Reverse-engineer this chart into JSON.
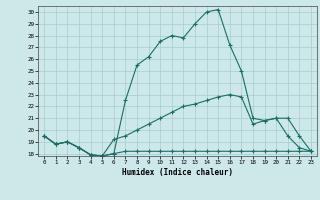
{
  "xlabel": "Humidex (Indice chaleur)",
  "ylabel": "",
  "xlim": [
    -0.5,
    23.5
  ],
  "ylim": [
    17.8,
    30.5
  ],
  "yticks": [
    18,
    19,
    20,
    21,
    22,
    23,
    24,
    25,
    26,
    27,
    28,
    29,
    30
  ],
  "xticks": [
    0,
    1,
    2,
    3,
    4,
    5,
    6,
    7,
    8,
    9,
    10,
    11,
    12,
    13,
    14,
    15,
    16,
    17,
    18,
    19,
    20,
    21,
    22,
    23
  ],
  "bg_color": "#cde8e8",
  "grid_color": "#a8cccc",
  "line_color": "#1a6e64",
  "line1_x": [
    0,
    1,
    2,
    3,
    4,
    5,
    6,
    7,
    8,
    9,
    10,
    11,
    12,
    13,
    14,
    15,
    16,
    17,
    18,
    19,
    20,
    21,
    22,
    23
  ],
  "line1_y": [
    19.5,
    18.8,
    19.0,
    18.5,
    17.9,
    17.8,
    18.0,
    18.2,
    18.2,
    18.2,
    18.2,
    18.2,
    18.2,
    18.2,
    18.2,
    18.2,
    18.2,
    18.2,
    18.2,
    18.2,
    18.2,
    18.2,
    18.2,
    18.2
  ],
  "line2_x": [
    0,
    1,
    2,
    3,
    4,
    5,
    6,
    7,
    8,
    9,
    10,
    11,
    12,
    13,
    14,
    15,
    16,
    17,
    18,
    19,
    20,
    21,
    22,
    23
  ],
  "line2_y": [
    19.5,
    18.8,
    19.0,
    18.5,
    17.9,
    17.8,
    18.0,
    22.5,
    25.5,
    26.2,
    27.5,
    28.0,
    27.8,
    29.0,
    30.0,
    30.2,
    27.2,
    25.0,
    21.0,
    20.8,
    21.0,
    19.5,
    18.5,
    18.2
  ],
  "line3_x": [
    0,
    1,
    2,
    3,
    4,
    5,
    6,
    7,
    8,
    9,
    10,
    11,
    12,
    13,
    14,
    15,
    16,
    17,
    18,
    19,
    20,
    21,
    22,
    23
  ],
  "line3_y": [
    19.5,
    18.8,
    19.0,
    18.5,
    17.9,
    17.8,
    19.2,
    19.5,
    20.0,
    20.5,
    21.0,
    21.5,
    22.0,
    22.2,
    22.5,
    22.8,
    23.0,
    22.8,
    20.5,
    20.8,
    21.0,
    21.0,
    19.5,
    18.2
  ]
}
